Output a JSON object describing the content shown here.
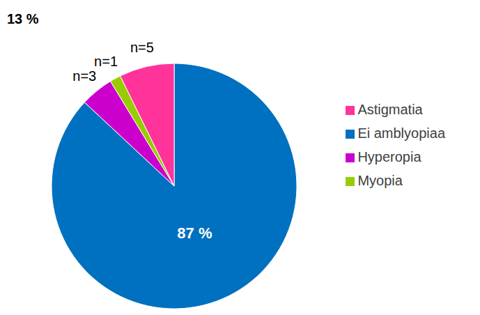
{
  "chart_data": {
    "type": "pie",
    "categories": [
      "Ei amblyopiaa",
      "Hyperopia",
      "Myopia",
      "Astigmatia"
    ],
    "values": [
      87,
      4.35,
      1.45,
      7.25
    ],
    "value_labels": [
      "87 %",
      null,
      null,
      null
    ],
    "counts": [
      null,
      3,
      1,
      5
    ],
    "count_labels": [
      null,
      "n=3",
      "n=1",
      "n=5"
    ],
    "colors": [
      "#0070c0",
      "#cc00cc",
      "#99cc00",
      "#ff3399"
    ],
    "annotations": [
      {
        "text": "13 %",
        "value": 13
      }
    ],
    "legend": "right"
  }
}
